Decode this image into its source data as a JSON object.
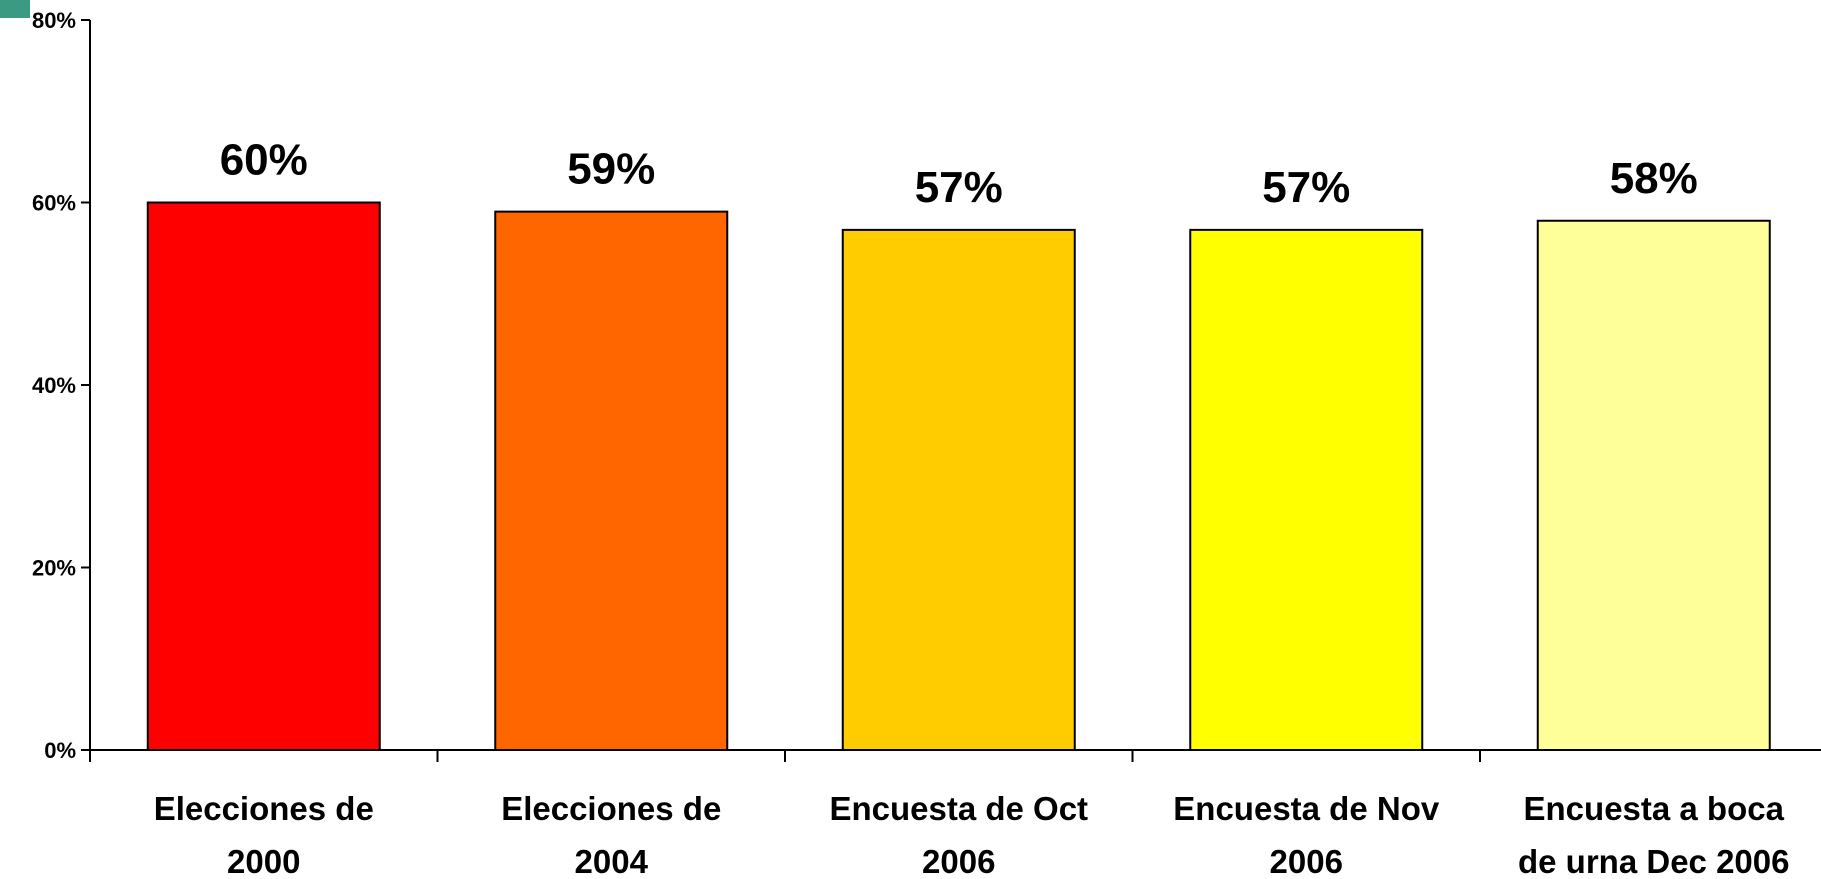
{
  "chart_data": {
    "type": "bar",
    "categories": [
      [
        "Elecciones de",
        "2000"
      ],
      [
        "Elecciones de",
        "2004"
      ],
      [
        "Encuesta de Oct",
        "2006"
      ],
      [
        "Encuesta de Nov",
        "2006"
      ],
      [
        "Encuesta a boca",
        "de urna Dec 2006"
      ]
    ],
    "values": [
      60,
      59,
      57,
      57,
      58
    ],
    "data_labels": [
      "60%",
      "59%",
      "57%",
      "57%",
      "58%"
    ],
    "bar_colors": [
      "#ff0000",
      "#ff6600",
      "#ffcc00",
      "#ffff00",
      "#ffff99"
    ],
    "ylim": [
      0,
      80
    ],
    "yticks": [
      0,
      20,
      40,
      60,
      80
    ],
    "ytick_labels": [
      "0%",
      "20%",
      "40%",
      "60%",
      "80%"
    ],
    "title": "",
    "xlabel": "",
    "ylabel": "",
    "grid": false,
    "legend": "none"
  }
}
